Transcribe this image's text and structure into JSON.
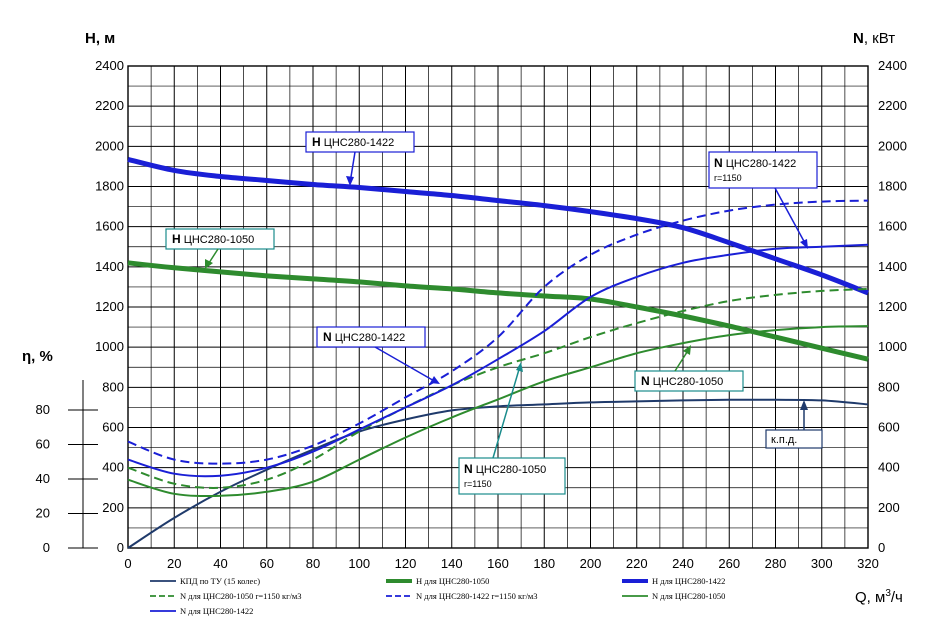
{
  "chart_data": {
    "type": "line",
    "title": "",
    "axes": {
      "left_title": "H, м",
      "right_title_bold": "N",
      "right_title_rest": ", кВт",
      "eta_title": "η, %",
      "x_title": "Q, м",
      "x_title_sup": "3",
      "x_title_end": "/ч",
      "xlim": [
        0,
        320
      ],
      "ylim_left": [
        0,
        2400
      ],
      "ylim_right": [
        0,
        2400
      ],
      "ylim_eta_range": [
        0,
        80
      ],
      "x_ticks": [
        "0",
        "20",
        "40",
        "60",
        "80",
        "100",
        "120",
        "140",
        "160",
        "180",
        "200",
        "220",
        "240",
        "260",
        "280",
        "300",
        "320"
      ],
      "y_ticks": [
        "0",
        "200",
        "400",
        "600",
        "800",
        "1000",
        "1200",
        "1400",
        "1600",
        "1800",
        "2000",
        "2200",
        "2400"
      ],
      "eta_ticks": [
        "0",
        "20",
        "40",
        "60",
        "80"
      ],
      "grid": true
    },
    "colors": {
      "dark_blue": "#1f3a6b",
      "green": "#2e8b2e",
      "blue": "#1a1fd6",
      "teal": "#1a8c8c"
    },
    "series": [
      {
        "name": "КПД по ТУ (15 колес)",
        "color": "#1f3a6b",
        "style": "solid",
        "width": 2,
        "x": [
          0,
          20,
          40,
          60,
          80,
          100,
          120,
          140,
          160,
          180,
          200,
          220,
          240,
          260,
          280,
          300,
          320
        ],
        "y": [
          0,
          150,
          280,
          390,
          490,
          580,
          640,
          685,
          705,
          715,
          725,
          730,
          735,
          738,
          738,
          735,
          715
        ]
      },
      {
        "name": "Н для ЦНС280-1050",
        "color": "#2e8b2e",
        "style": "solid",
        "width": 5,
        "x": [
          0,
          20,
          40,
          60,
          80,
          100,
          120,
          140,
          160,
          180,
          200,
          220,
          240,
          260,
          280,
          300,
          320
        ],
        "y": [
          1420,
          1395,
          1375,
          1355,
          1340,
          1325,
          1305,
          1290,
          1270,
          1255,
          1240,
          1200,
          1155,
          1105,
          1050,
          995,
          940
        ]
      },
      {
        "name": "Н для ЦНС280-1422",
        "color": "#1a1fd6",
        "style": "solid",
        "width": 5,
        "x": [
          0,
          20,
          40,
          60,
          80,
          100,
          120,
          140,
          160,
          180,
          200,
          220,
          240,
          260,
          280,
          300,
          320
        ],
        "y": [
          1935,
          1880,
          1850,
          1830,
          1810,
          1795,
          1775,
          1755,
          1730,
          1705,
          1675,
          1640,
          1595,
          1520,
          1440,
          1360,
          1270
        ]
      },
      {
        "name": "N для ЦНС280-1050 r=1150 кг/м3",
        "color": "#2e8b2e",
        "style": "dashed",
        "width": 2,
        "x": [
          0,
          20,
          40,
          60,
          80,
          100,
          120,
          140,
          160,
          180,
          200,
          220,
          240,
          260,
          280,
          300,
          320
        ],
        "y": [
          400,
          320,
          300,
          340,
          440,
          580,
          700,
          810,
          900,
          970,
          1050,
          1120,
          1180,
          1230,
          1260,
          1280,
          1290
        ]
      },
      {
        "name": "N для ЦНС280-1422 r=1150 кг/м3",
        "color": "#1a1fd6",
        "style": "dashed",
        "width": 2,
        "x": [
          0,
          20,
          40,
          60,
          80,
          100,
          120,
          140,
          160,
          180,
          200,
          220,
          240,
          260,
          280,
          300,
          320
        ],
        "y": [
          530,
          440,
          420,
          440,
          510,
          620,
          750,
          880,
          1050,
          1300,
          1460,
          1560,
          1630,
          1680,
          1710,
          1725,
          1730
        ]
      },
      {
        "name": "N для ЦНС280-1050",
        "color": "#2e8b2e",
        "style": "solid",
        "width": 2,
        "x": [
          0,
          20,
          40,
          60,
          80,
          100,
          120,
          140,
          160,
          180,
          200,
          220,
          240,
          260,
          280,
          300,
          320
        ],
        "y": [
          340,
          270,
          260,
          280,
          330,
          440,
          550,
          650,
          740,
          830,
          900,
          970,
          1020,
          1060,
          1085,
          1100,
          1105
        ]
      },
      {
        "name": "N для ЦНС280-1422",
        "color": "#1a1fd6",
        "style": "solid",
        "width": 2,
        "x": [
          0,
          20,
          40,
          60,
          80,
          100,
          120,
          140,
          160,
          180,
          200,
          220,
          240,
          260,
          280,
          300,
          320
        ],
        "y": [
          440,
          370,
          360,
          400,
          480,
          590,
          700,
          810,
          940,
          1080,
          1250,
          1350,
          1420,
          1460,
          1490,
          1500,
          1510
        ]
      }
    ],
    "legend": [
      "КПД по ТУ (15 колес)",
      "Н для ЦНС280-1050",
      "Н для ЦНС280-1422",
      "N для ЦНС280-1050 r=1150 кг/м3",
      "N для ЦНС280-1422 r=1150 кг/м3",
      "N для ЦНС280-1050",
      "N для ЦНС280-1422"
    ],
    "annotations": {
      "h1422_bold": "Н",
      "h1422_rest": " ЦНС280-1422",
      "h1050_bold": "Н",
      "h1050_rest": " ЦНС280-1050",
      "n1422r_bold": "N",
      "n1422r_rest": " ЦНС280-1422",
      "n1422r_sub": "r=1150",
      "n1422_bold": "N",
      "n1422_rest": " ЦНС280-1422",
      "n1050_bold": "N",
      "n1050_rest": " ЦНС280-1050",
      "n1050r_bold": "N",
      "n1050r_rest": " ЦНС280-1050",
      "n1050r_sub": "r=1150",
      "kpd": "к.п.д."
    }
  }
}
